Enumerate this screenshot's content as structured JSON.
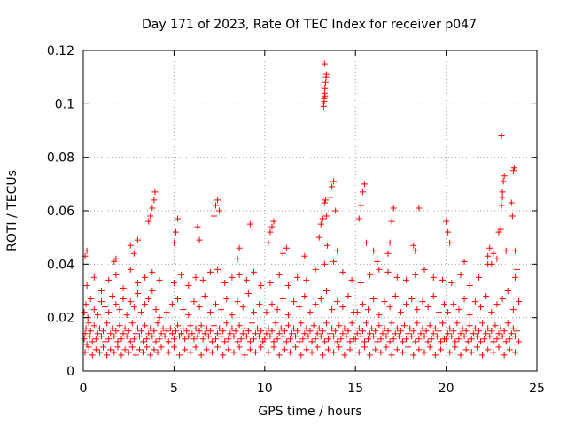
{
  "chart_data": {
    "type": "scatter",
    "title": "Day 171 of 2023, Rate Of TEC Index for receiver p047",
    "xlabel": "GPS time / hours",
    "ylabel": "ROTI / TECUs",
    "xlim": [
      0,
      25
    ],
    "ylim": [
      0,
      0.12
    ],
    "xticks": [
      0,
      5,
      10,
      15,
      20,
      25
    ],
    "xtick_labels": [
      "0",
      "5",
      "10",
      "15",
      "20",
      "25"
    ],
    "yticks": [
      0,
      0.02,
      0.04,
      0.06,
      0.08,
      0.1,
      0.12
    ],
    "ytick_labels": [
      "0",
      "0.02",
      "0.04",
      "0.06",
      "0.08",
      "0.1",
      "0.12"
    ],
    "grid": true,
    "marker": "+",
    "series": [
      {
        "name": "ROTI",
        "color": "#ff0000",
        "x": [
          0.05,
          0.1,
          0.15,
          0.2,
          0.3,
          0.35,
          0.4,
          0.5,
          0.6,
          0.7,
          0.8,
          0.9,
          1.0,
          1.1,
          1.2,
          1.3,
          1.4,
          1.5,
          1.6,
          1.7,
          1.8,
          1.9,
          2.0,
          2.1,
          2.2,
          2.3,
          2.4,
          2.5,
          2.6,
          2.7,
          2.8,
          2.9,
          3.0,
          3.1,
          3.2,
          3.3,
          3.4,
          3.5,
          3.6,
          3.7,
          3.8,
          3.9,
          4.0,
          4.1,
          4.2,
          4.3,
          4.4,
          0.05,
          0.15,
          0.25,
          0.4,
          0.6,
          0.8,
          1.0,
          1.2,
          1.4,
          1.6,
          1.8,
          2.0,
          2.2,
          2.4,
          2.6,
          2.8,
          3.0,
          3.2,
          3.4,
          3.6,
          3.8,
          4.0,
          4.2,
          0.1,
          0.3,
          0.5,
          0.7,
          0.9,
          1.1,
          1.3,
          1.5,
          1.7,
          1.9,
          2.1,
          2.3,
          2.5,
          2.7,
          2.9,
          3.1,
          3.3,
          3.5,
          3.7,
          3.9,
          4.1,
          4.3,
          0.2,
          0.6,
          1.0,
          1.4,
          1.8,
          2.2,
          2.6,
          3.0,
          3.4,
          3.8,
          4.2,
          0.1,
          0.2,
          1.7,
          1.8,
          2.6,
          2.8,
          3.0,
          3.6,
          3.7,
          3.8,
          3.9,
          3.95,
          4.5,
          4.6,
          4.7,
          4.8,
          4.9,
          5.0,
          5.1,
          5.2,
          5.3,
          5.4,
          5.5,
          5.6,
          5.7,
          5.8,
          5.9,
          6.0,
          6.1,
          6.2,
          6.3,
          6.4,
          6.5,
          6.6,
          6.7,
          6.8,
          6.9,
          7.0,
          7.1,
          7.2,
          7.3,
          7.4,
          7.5,
          7.6,
          7.7,
          7.8,
          7.9,
          8.0,
          8.1,
          8.2,
          8.3,
          8.4,
          8.5,
          8.6,
          8.7,
          8.8,
          8.9,
          9.0,
          9.1,
          9.2,
          9.3,
          9.4,
          9.5,
          9.6,
          9.7,
          9.8,
          9.9,
          4.6,
          4.9,
          5.2,
          5.5,
          5.8,
          6.1,
          6.4,
          6.7,
          7.0,
          7.3,
          7.6,
          7.9,
          8.2,
          8.5,
          8.8,
          9.1,
          9.4,
          9.7,
          4.7,
          5.0,
          5.3,
          5.6,
          5.9,
          6.2,
          6.5,
          6.8,
          7.1,
          7.4,
          7.7,
          8.0,
          8.3,
          8.6,
          8.9,
          9.2,
          9.5,
          9.8,
          5.0,
          5.4,
          5.8,
          6.2,
          6.6,
          7.0,
          7.4,
          7.8,
          8.2,
          8.6,
          9.0,
          9.4,
          9.8,
          5.0,
          5.1,
          5.2,
          6.3,
          6.4,
          7.2,
          7.3,
          7.4,
          7.5,
          8.5,
          8.6,
          9.2,
          10.0,
          10.1,
          10.2,
          10.3,
          10.4,
          10.5,
          10.6,
          10.7,
          10.8,
          10.9,
          11.0,
          11.1,
          11.2,
          11.3,
          11.4,
          11.5,
          11.6,
          11.7,
          11.8,
          11.9,
          12.0,
          12.1,
          12.2,
          12.3,
          12.4,
          12.5,
          12.6,
          12.7,
          12.8,
          12.9,
          13.0,
          13.1,
          13.2,
          13.3,
          13.4,
          13.5,
          13.6,
          13.7,
          13.8,
          13.9,
          14.0,
          14.1,
          14.2,
          14.3,
          14.4,
          14.5,
          14.6,
          14.7,
          14.8,
          14.9,
          10.1,
          10.4,
          10.7,
          11.0,
          11.3,
          11.6,
          11.9,
          12.2,
          12.5,
          12.8,
          13.1,
          13.4,
          13.7,
          14.0,
          14.3,
          14.6,
          14.9,
          10.2,
          10.5,
          10.8,
          11.1,
          11.4,
          11.7,
          12.0,
          12.3,
          12.6,
          12.9,
          13.2,
          13.5,
          13.8,
          14.1,
          14.4,
          14.7,
          10.3,
          10.8,
          11.3,
          11.8,
          12.3,
          12.8,
          13.3,
          13.8,
          14.3,
          14.8,
          10.2,
          10.3,
          10.4,
          10.5,
          11.0,
          11.2,
          12.2,
          13.0,
          13.1,
          13.2,
          13.3,
          13.35,
          13.4,
          13.45,
          13.6,
          13.7,
          13.8,
          13.9,
          14.0,
          13.25,
          13.28,
          13.3,
          13.32,
          13.35,
          13.38,
          13.4,
          13.3,
          13.25,
          13.28,
          13.32,
          15.0,
          15.1,
          15.2,
          15.3,
          15.4,
          15.5,
          15.6,
          15.7,
          15.8,
          15.9,
          16.0,
          16.1,
          16.2,
          16.3,
          16.4,
          16.5,
          16.6,
          16.7,
          16.8,
          16.9,
          17.0,
          17.1,
          17.2,
          17.3,
          17.4,
          17.5,
          17.6,
          17.7,
          17.8,
          17.9,
          18.0,
          18.1,
          18.2,
          18.3,
          18.4,
          18.5,
          18.6,
          18.7,
          18.8,
          18.9,
          19.0,
          19.1,
          19.2,
          19.3,
          19.4,
          19.5,
          19.6,
          19.7,
          19.8,
          19.9,
          15.1,
          15.4,
          15.7,
          16.0,
          16.3,
          16.6,
          16.9,
          17.2,
          17.5,
          17.8,
          18.1,
          18.4,
          18.7,
          19.0,
          19.3,
          19.6,
          19.9,
          15.2,
          15.5,
          15.8,
          16.1,
          16.4,
          16.7,
          17.0,
          17.3,
          17.6,
          17.9,
          18.2,
          18.5,
          18.8,
          19.1,
          19.4,
          19.7,
          15.3,
          15.8,
          16.3,
          16.8,
          17.3,
          17.8,
          18.3,
          18.8,
          19.3,
          19.8,
          15.2,
          15.3,
          15.4,
          15.5,
          15.6,
          16.0,
          16.2,
          16.8,
          16.9,
          17.0,
          17.1,
          18.2,
          18.3,
          18.5,
          20.0,
          20.1,
          20.2,
          20.3,
          20.4,
          20.5,
          20.6,
          20.7,
          20.8,
          20.9,
          21.0,
          21.1,
          21.2,
          21.3,
          21.4,
          21.5,
          21.6,
          21.7,
          21.8,
          21.9,
          22.0,
          22.1,
          22.2,
          22.3,
          22.4,
          22.5,
          22.6,
          22.7,
          22.8,
          22.9,
          23.0,
          23.1,
          23.2,
          23.3,
          23.4,
          23.5,
          23.6,
          23.7,
          23.8,
          23.9,
          24.0,
          20.1,
          20.4,
          20.7,
          21.0,
          21.3,
          21.6,
          21.9,
          22.2,
          22.5,
          22.8,
          23.1,
          23.4,
          23.7,
          24.0,
          20.2,
          20.5,
          20.8,
          21.1,
          21.4,
          21.7,
          22.0,
          22.3,
          22.6,
          22.9,
          23.2,
          23.5,
          23.8,
          20.3,
          20.8,
          21.3,
          21.8,
          22.3,
          22.8,
          23.3,
          23.8,
          20.0,
          20.1,
          20.2,
          21.0,
          22.3,
          22.4,
          22.5,
          22.6,
          22.9,
          23.0,
          23.05,
          23.1,
          23.15,
          23.2,
          23.6,
          23.65,
          23.7,
          23.75,
          23.8,
          23.9,
          23.05,
          23.1
        ],
        "y": [
          0.012,
          0.014,
          0.016,
          0.01,
          0.018,
          0.013,
          0.015,
          0.011,
          0.017,
          0.012,
          0.014,
          0.016,
          0.013,
          0.015,
          0.011,
          0.018,
          0.012,
          0.014,
          0.016,
          0.013,
          0.015,
          0.011,
          0.017,
          0.012,
          0.014,
          0.016,
          0.013,
          0.015,
          0.011,
          0.018,
          0.012,
          0.014,
          0.016,
          0.013,
          0.015,
          0.011,
          0.017,
          0.012,
          0.014,
          0.016,
          0.013,
          0.015,
          0.011,
          0.018,
          0.012,
          0.014,
          0.016,
          0.022,
          0.025,
          0.02,
          0.027,
          0.023,
          0.021,
          0.026,
          0.024,
          0.022,
          0.028,
          0.025,
          0.023,
          0.027,
          0.021,
          0.026,
          0.024,
          0.029,
          0.022,
          0.025,
          0.027,
          0.03,
          0.023,
          0.02,
          0.007,
          0.009,
          0.006,
          0.008,
          0.007,
          0.009,
          0.006,
          0.008,
          0.007,
          0.009,
          0.006,
          0.008,
          0.007,
          0.009,
          0.006,
          0.008,
          0.007,
          0.009,
          0.006,
          0.008,
          0.007,
          0.009,
          0.032,
          0.035,
          0.03,
          0.034,
          0.036,
          0.031,
          0.038,
          0.033,
          0.035,
          0.037,
          0.034,
          0.043,
          0.045,
          0.041,
          0.042,
          0.047,
          0.044,
          0.049,
          0.056,
          0.058,
          0.061,
          0.064,
          0.067,
          0.013,
          0.015,
          0.011,
          0.016,
          0.014,
          0.012,
          0.015,
          0.017,
          0.013,
          0.014,
          0.016,
          0.012,
          0.015,
          0.013,
          0.017,
          0.014,
          0.012,
          0.016,
          0.013,
          0.015,
          0.017,
          0.012,
          0.014,
          0.016,
          0.013,
          0.015,
          0.011,
          0.017,
          0.012,
          0.014,
          0.016,
          0.013,
          0.015,
          0.011,
          0.018,
          0.012,
          0.014,
          0.016,
          0.013,
          0.015,
          0.011,
          0.017,
          0.012,
          0.014,
          0.016,
          0.013,
          0.015,
          0.011,
          0.018,
          0.012,
          0.014,
          0.016,
          0.013,
          0.015,
          0.011,
          0.022,
          0.025,
          0.027,
          0.023,
          0.021,
          0.026,
          0.024,
          0.028,
          0.022,
          0.025,
          0.023,
          0.027,
          0.021,
          0.026,
          0.024,
          0.029,
          0.022,
          0.025,
          0.007,
          0.009,
          0.006,
          0.008,
          0.007,
          0.009,
          0.006,
          0.008,
          0.007,
          0.009,
          0.006,
          0.008,
          0.007,
          0.009,
          0.006,
          0.008,
          0.007,
          0.009,
          0.033,
          0.036,
          0.032,
          0.035,
          0.034,
          0.037,
          0.038,
          0.033,
          0.035,
          0.036,
          0.034,
          0.037,
          0.032,
          0.048,
          0.052,
          0.057,
          0.054,
          0.049,
          0.058,
          0.062,
          0.064,
          0.06,
          0.042,
          0.046,
          0.055,
          0.012,
          0.014,
          0.016,
          0.013,
          0.015,
          0.011,
          0.018,
          0.012,
          0.014,
          0.016,
          0.013,
          0.015,
          0.011,
          0.017,
          0.012,
          0.014,
          0.016,
          0.013,
          0.015,
          0.011,
          0.018,
          0.012,
          0.014,
          0.016,
          0.013,
          0.015,
          0.011,
          0.017,
          0.012,
          0.014,
          0.016,
          0.013,
          0.015,
          0.011,
          0.018,
          0.012,
          0.014,
          0.016,
          0.013,
          0.015,
          0.011,
          0.017,
          0.012,
          0.014,
          0.016,
          0.013,
          0.015,
          0.011,
          0.018,
          0.012,
          0.022,
          0.025,
          0.023,
          0.027,
          0.021,
          0.026,
          0.024,
          0.028,
          0.022,
          0.025,
          0.027,
          0.03,
          0.023,
          0.026,
          0.024,
          0.028,
          0.022,
          0.007,
          0.009,
          0.006,
          0.008,
          0.007,
          0.009,
          0.006,
          0.008,
          0.007,
          0.009,
          0.006,
          0.008,
          0.007,
          0.009,
          0.006,
          0.008,
          0.033,
          0.036,
          0.032,
          0.035,
          0.034,
          0.038,
          0.04,
          0.041,
          0.037,
          0.034,
          0.048,
          0.052,
          0.054,
          0.056,
          0.044,
          0.046,
          0.043,
          0.05,
          0.055,
          0.057,
          0.063,
          0.064,
          0.058,
          0.047,
          0.065,
          0.069,
          0.071,
          0.06,
          0.045,
          0.1,
          0.102,
          0.104,
          0.106,
          0.108,
          0.11,
          0.111,
          0.115,
          0.099,
          0.101,
          0.103,
          0.012,
          0.014,
          0.016,
          0.013,
          0.015,
          0.011,
          0.018,
          0.012,
          0.014,
          0.016,
          0.013,
          0.015,
          0.011,
          0.017,
          0.012,
          0.014,
          0.016,
          0.013,
          0.015,
          0.011,
          0.018,
          0.012,
          0.014,
          0.016,
          0.013,
          0.015,
          0.011,
          0.017,
          0.012,
          0.014,
          0.016,
          0.013,
          0.015,
          0.011,
          0.018,
          0.012,
          0.014,
          0.016,
          0.013,
          0.015,
          0.011,
          0.017,
          0.012,
          0.014,
          0.016,
          0.013,
          0.015,
          0.011,
          0.018,
          0.012,
          0.022,
          0.025,
          0.023,
          0.027,
          0.021,
          0.026,
          0.024,
          0.028,
          0.022,
          0.025,
          0.027,
          0.023,
          0.026,
          0.024,
          0.028,
          0.022,
          0.025,
          0.007,
          0.009,
          0.006,
          0.008,
          0.007,
          0.009,
          0.006,
          0.008,
          0.007,
          0.009,
          0.006,
          0.008,
          0.007,
          0.009,
          0.006,
          0.008,
          0.033,
          0.036,
          0.038,
          0.037,
          0.035,
          0.034,
          0.036,
          0.038,
          0.035,
          0.034,
          0.057,
          0.062,
          0.067,
          0.07,
          0.048,
          0.045,
          0.041,
          0.044,
          0.048,
          0.056,
          0.061,
          0.047,
          0.045,
          0.061,
          0.012,
          0.014,
          0.016,
          0.013,
          0.015,
          0.011,
          0.018,
          0.012,
          0.014,
          0.016,
          0.013,
          0.015,
          0.011,
          0.017,
          0.012,
          0.014,
          0.016,
          0.013,
          0.015,
          0.011,
          0.018,
          0.012,
          0.014,
          0.016,
          0.013,
          0.015,
          0.011,
          0.017,
          0.012,
          0.014,
          0.016,
          0.013,
          0.015,
          0.011,
          0.018,
          0.012,
          0.014,
          0.016,
          0.013,
          0.015,
          0.011,
          0.022,
          0.025,
          0.023,
          0.027,
          0.021,
          0.026,
          0.024,
          0.028,
          0.022,
          0.025,
          0.027,
          0.03,
          0.023,
          0.026,
          0.007,
          0.009,
          0.006,
          0.008,
          0.007,
          0.009,
          0.006,
          0.008,
          0.007,
          0.009,
          0.006,
          0.008,
          0.007,
          0.033,
          0.036,
          0.032,
          0.035,
          0.04,
          0.042,
          0.045,
          0.035,
          0.056,
          0.052,
          0.048,
          0.041,
          0.043,
          0.046,
          0.04,
          0.044,
          0.052,
          0.053,
          0.062,
          0.067,
          0.071,
          0.073,
          0.063,
          0.058,
          0.075,
          0.076,
          0.045,
          0.038,
          0.088,
          0.065
        ]
      }
    ]
  }
}
